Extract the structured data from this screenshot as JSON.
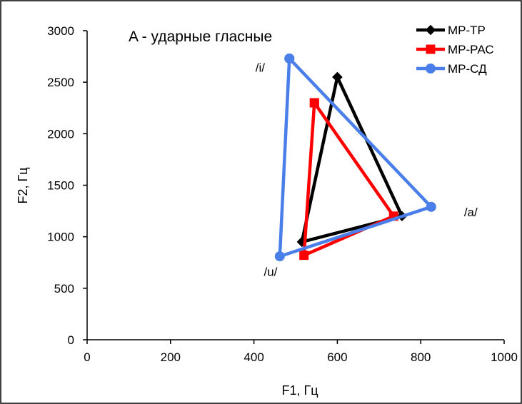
{
  "chart_data": {
    "type": "line",
    "title": "A - ударные гласные",
    "xlabel": "F1, Гц",
    "ylabel": "F2, Гц",
    "xlim": [
      0,
      1000
    ],
    "ylim": [
      0,
      3000
    ],
    "xticks": [
      0,
      200,
      400,
      600,
      800,
      1000
    ],
    "yticks": [
      0,
      500,
      1000,
      1500,
      2000,
      2500,
      3000
    ],
    "grid": false,
    "legend_position": "top-right",
    "series": [
      {
        "name": "МР-ТР",
        "color": "#000000",
        "marker": "diamond",
        "x": [
          600,
          755,
          515,
          600
        ],
        "y": [
          2550,
          1200,
          950,
          2550
        ]
      },
      {
        "name": "МР-РАС",
        "color": "#ff0000",
        "marker": "square",
        "x": [
          545,
          735,
          520,
          545
        ],
        "y": [
          2300,
          1200,
          820,
          2300
        ]
      },
      {
        "name": "МР-СД",
        "color": "#4a7ee8",
        "marker": "circle",
        "x": [
          485,
          825,
          462,
          485
        ],
        "y": [
          2730,
          1290,
          810,
          2730
        ]
      }
    ],
    "annotations": [
      {
        "text": "/i/",
        "x": 415,
        "y": 2600
      },
      {
        "text": "/a/",
        "x": 920,
        "y": 1200
      },
      {
        "text": "/u/",
        "x": 440,
        "y": 620
      }
    ]
  }
}
